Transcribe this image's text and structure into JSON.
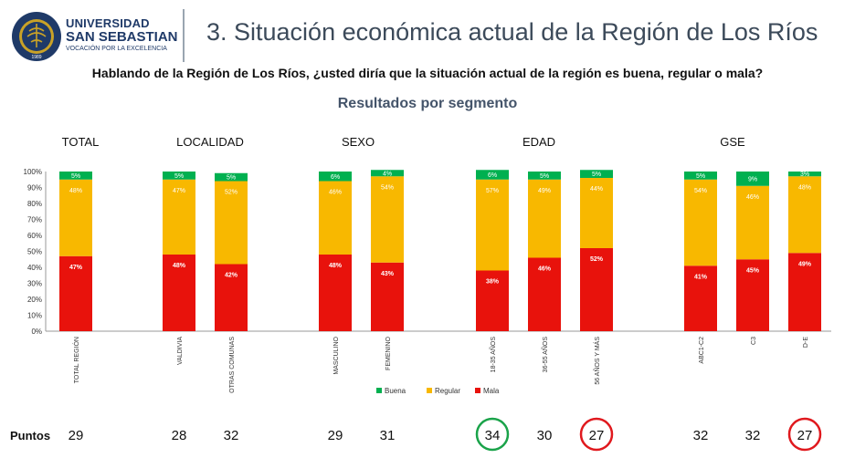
{
  "logo": {
    "line1": "UNIVERSIDAD",
    "line2": "SAN SEBASTIAN",
    "line3": "VOCACIÓN POR LA EXCELENCIA",
    "seal_text": "1989",
    "brand_color": "#1f3a68"
  },
  "title": "3. Situación económica actual de la Región de Los Ríos",
  "question": "Hablando de la Región de Los Ríos, ¿usted diría que la situación actual de la región es buena, regular o mala?",
  "subtitle": "Resultados por segmento",
  "chart_data": {
    "type": "bar",
    "stacked": true,
    "ylim": [
      0,
      100
    ],
    "yticks": [
      "0%",
      "10%",
      "20%",
      "30%",
      "40%",
      "50%",
      "60%",
      "70%",
      "80%",
      "90%",
      "100%"
    ],
    "segments": [
      {
        "name": "TOTAL",
        "categories": [
          "TOTAL REGIÓN"
        ]
      },
      {
        "name": "LOCALIDAD",
        "categories": [
          "VALDIVIA",
          "OTRAS COMUNAS"
        ]
      },
      {
        "name": "SEXO",
        "categories": [
          "MASCULINO",
          "FEMENINO"
        ]
      },
      {
        "name": "EDAD",
        "categories": [
          "18-35 AÑOS",
          "36-55 AÑOS",
          "56 AÑOS Y MÁS"
        ]
      },
      {
        "name": "GSE",
        "categories": [
          "ABC1-C2",
          "C3",
          "D-E"
        ]
      }
    ],
    "categories": [
      "TOTAL REGIÓN",
      "VALDIVIA",
      "OTRAS COMUNAS",
      "MASCULINO",
      "FEMENINO",
      "18-35 AÑOS",
      "36-55 AÑOS",
      "56 AÑOS Y MÁS",
      "ABC1-C2",
      "C3",
      "D-E"
    ],
    "series": [
      {
        "name": "Mala",
        "color": "#e8120c",
        "values": [
          47,
          48,
          42,
          48,
          43,
          38,
          46,
          52,
          41,
          45,
          49
        ],
        "labels": [
          "47%",
          "48%",
          "42%",
          "48%",
          "43%",
          "38%",
          "46%",
          "52%",
          "41%",
          "45%",
          "49%"
        ]
      },
      {
        "name": "Regular",
        "color": "#f8b800",
        "values": [
          48,
          47,
          52,
          46,
          54,
          57,
          49,
          44,
          54,
          46,
          48
        ],
        "labels": [
          "48%",
          "47%",
          "52%",
          "46%",
          "54%",
          "57%",
          "49%",
          "44%",
          "54%",
          "46%",
          "48%"
        ]
      },
      {
        "name": "Buena",
        "color": "#00b050",
        "values": [
          5,
          5,
          5,
          6,
          4,
          6,
          5,
          5,
          5,
          9,
          3
        ],
        "labels": [
          "5%",
          "5%",
          "5%",
          "6%",
          "4%",
          "6%",
          "5%",
          "5%",
          "5%",
          "9%",
          "3%"
        ]
      }
    ],
    "legend": [
      "Buena",
      "Regular",
      "Mala"
    ],
    "legend_position": "bottom",
    "puntos_label": "Puntos",
    "puntos": [
      {
        "value": "29",
        "highlight": "none"
      },
      {
        "value": "28",
        "highlight": "none"
      },
      {
        "value": "32",
        "highlight": "none"
      },
      {
        "value": "29",
        "highlight": "none"
      },
      {
        "value": "31",
        "highlight": "none"
      },
      {
        "value": "34",
        "highlight": "green"
      },
      {
        "value": "30",
        "highlight": "none"
      },
      {
        "value": "27",
        "highlight": "red"
      },
      {
        "value": "32",
        "highlight": "none"
      },
      {
        "value": "32",
        "highlight": "none"
      },
      {
        "value": "27",
        "highlight": "red"
      }
    ],
    "highlight_colors": {
      "green": "#1aa34a",
      "red": "#e0191e"
    }
  }
}
